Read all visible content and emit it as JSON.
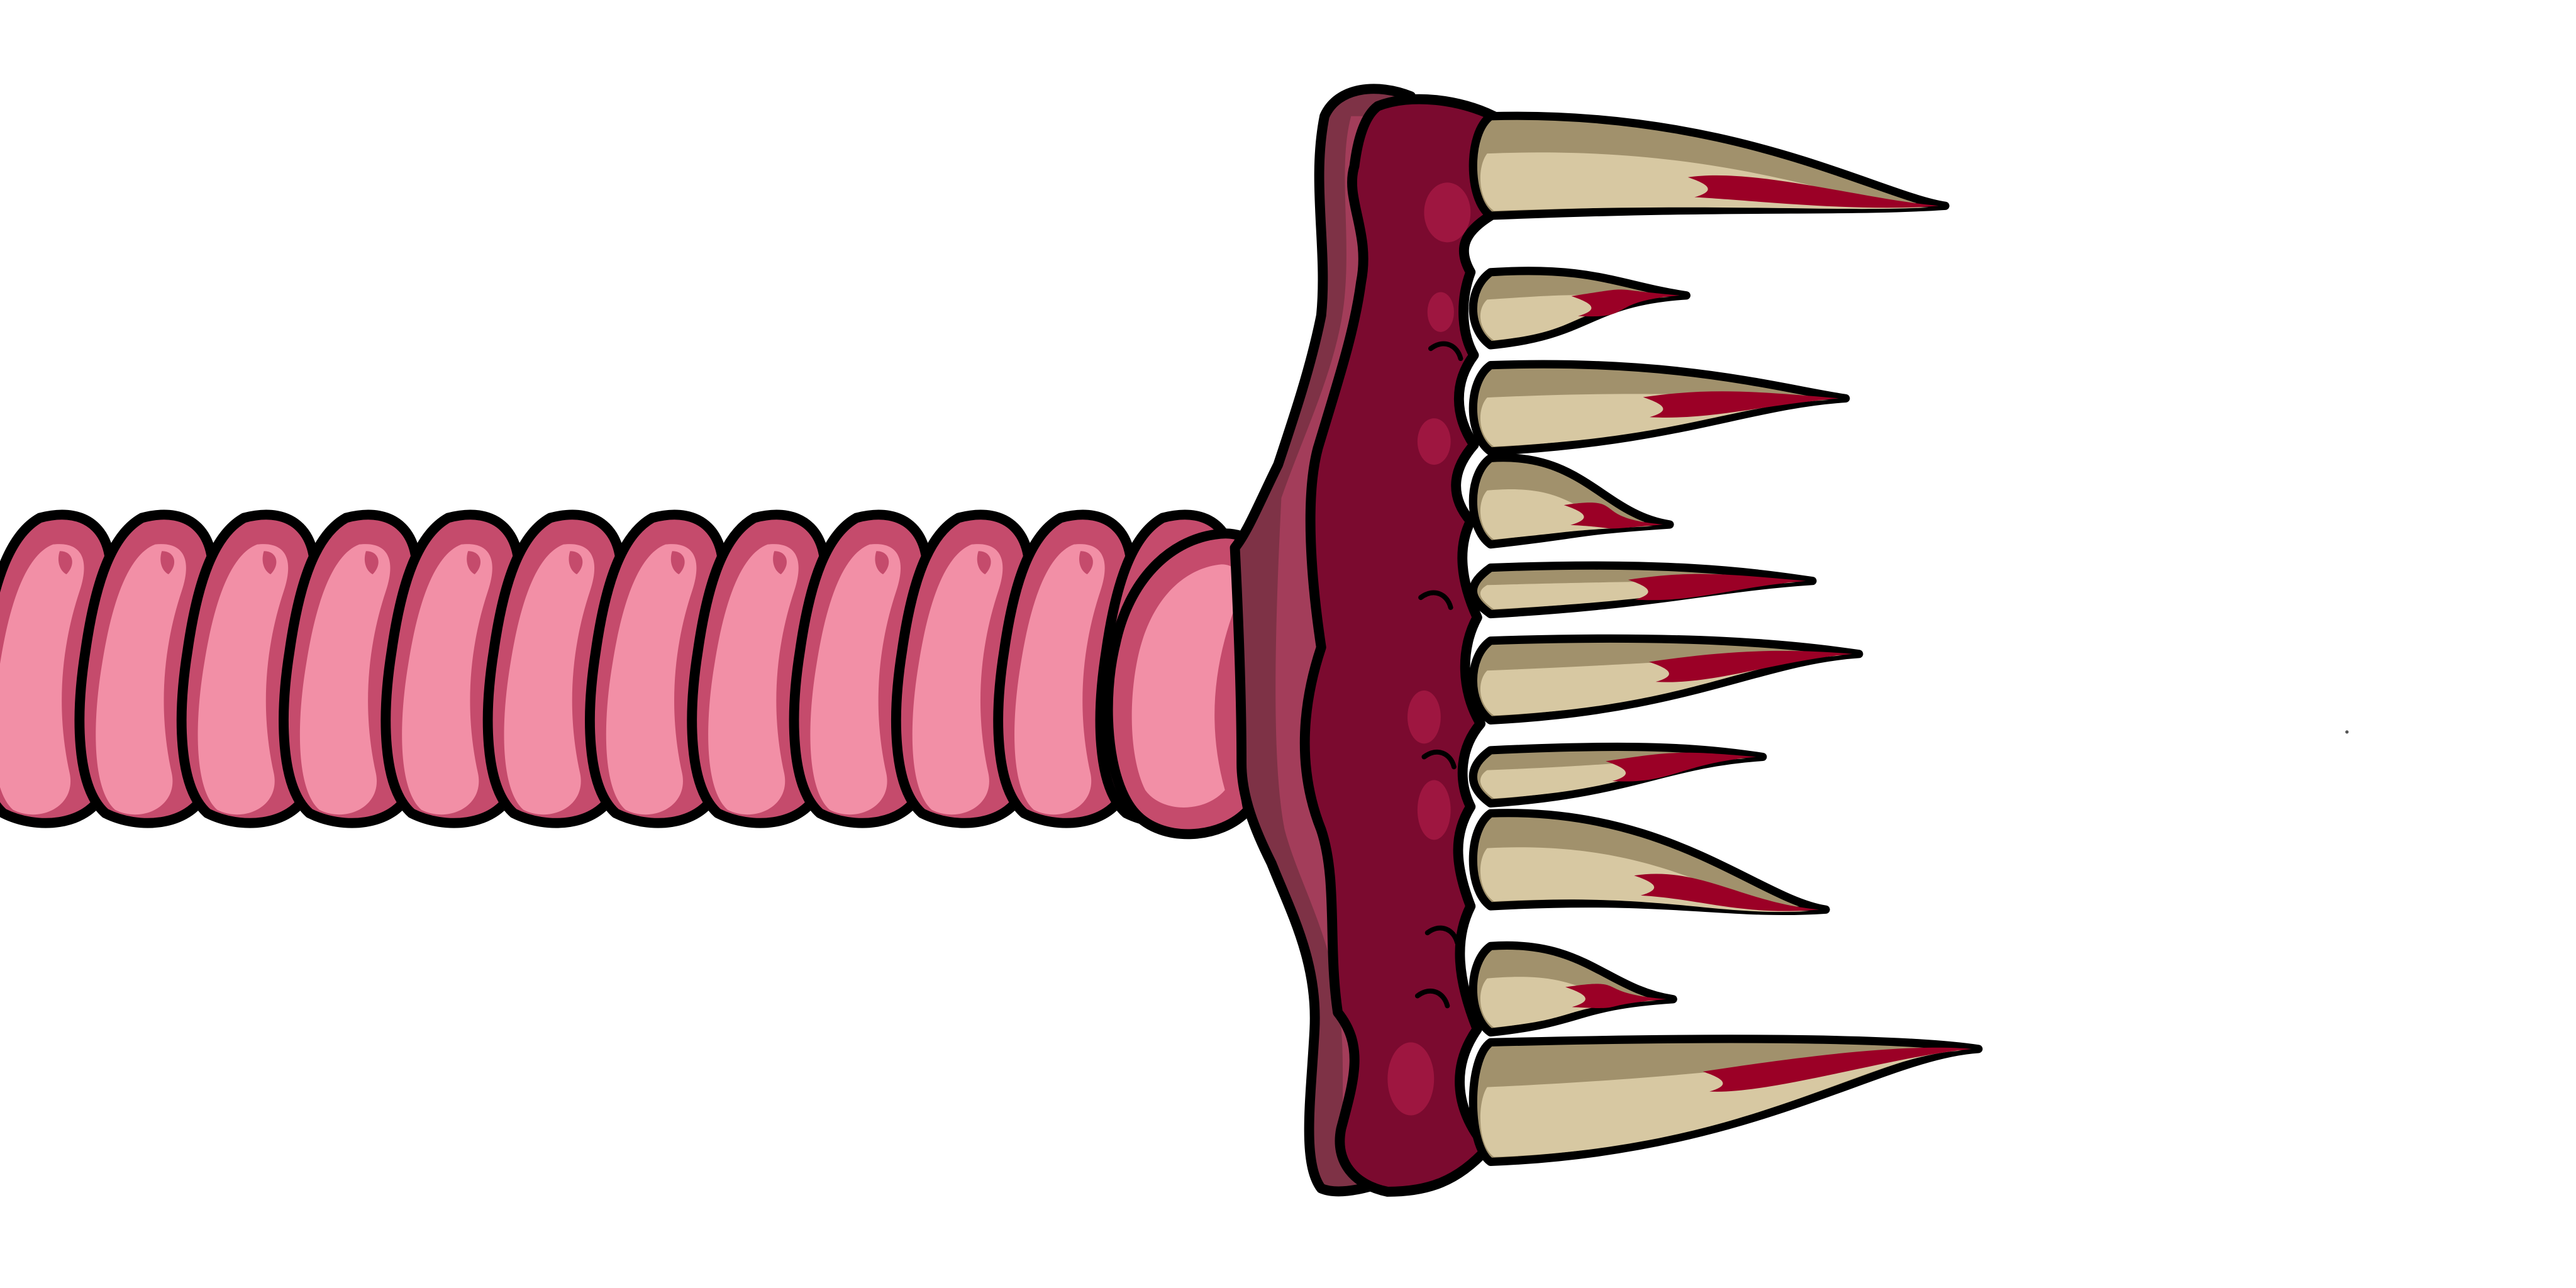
{
  "scene": {
    "background": "#ffffff",
    "outline": "#000000",
    "segments": 12,
    "teeth": 10
  },
  "palette": {
    "segment_light": "#f28fa6",
    "segment_dark": "#c54b6c",
    "collar": "#7e3246",
    "collar_mid": "#a33d5a",
    "head_dark": "#7b0a2f",
    "head_highlight": "#9e1640",
    "tooth_light": "#d7c8a2",
    "tooth_shadow": "#a1916c",
    "blood": "#9b0026"
  }
}
